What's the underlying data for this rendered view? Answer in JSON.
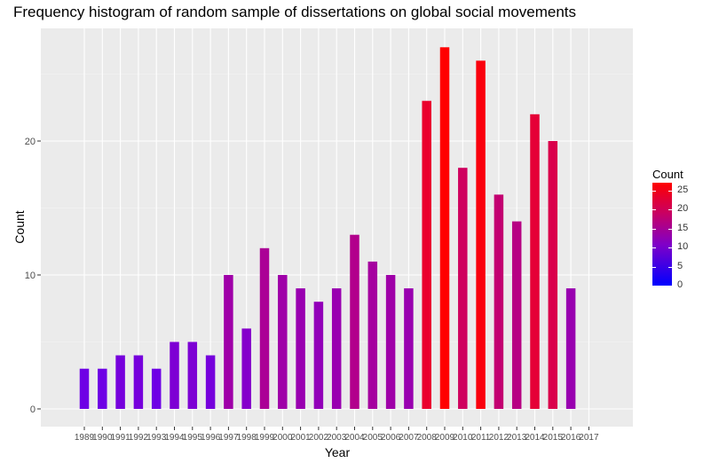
{
  "chart_data": {
    "type": "bar",
    "title": "Frequency histogram of random sample of dissertations on global social movements",
    "xlabel": "Year",
    "ylabel": "Count",
    "categories": [
      "1989",
      "1990",
      "1991",
      "1992",
      "1993",
      "1994",
      "1995",
      "1996",
      "1997",
      "1998",
      "1999",
      "2000",
      "2001",
      "2002",
      "2003",
      "2004",
      "2005",
      "2006",
      "2007",
      "2008",
      "2009",
      "2010",
      "2011",
      "2012",
      "2013",
      "2014",
      "2015",
      "2016",
      "2017"
    ],
    "values": [
      3,
      3,
      4,
      4,
      3,
      5,
      5,
      4,
      10,
      6,
      12,
      10,
      9,
      8,
      9,
      13,
      11,
      10,
      9,
      23,
      27,
      18,
      26,
      16,
      14,
      22,
      20,
      9,
      null
    ],
    "ylim": [
      0,
      28.5
    ],
    "yticks": [
      0,
      10,
      20
    ],
    "grid": true,
    "legend": {
      "title": "Count",
      "position": "right",
      "ticks": [
        0,
        5,
        10,
        15,
        20,
        25
      ],
      "low_color": "#0000ff",
      "high_color": "#ff0000",
      "range": [
        0,
        27
      ]
    },
    "panel_color": "#ebebeb",
    "grid_color": "#ffffff"
  }
}
